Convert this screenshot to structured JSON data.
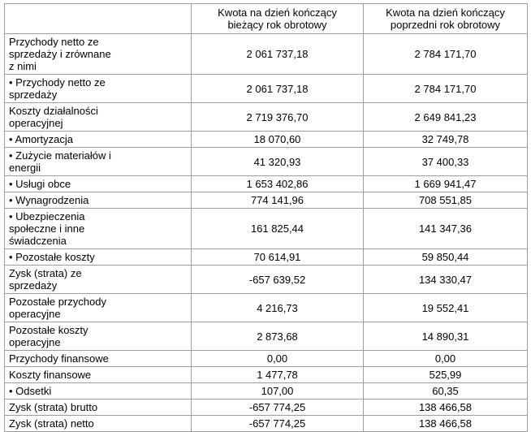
{
  "table": {
    "headers": [
      "Kwota na dzień kończący bieżący rok obrotowy",
      "Kwota na dzień kończący poprzedni rok obrotowy"
    ],
    "rows": [
      {
        "label": "Przychody netto ze sprzedaży i zrównane z nimi",
        "current": "2 061 737,18",
        "previous": "2 784 171,70"
      },
      {
        "label": "• Przychody netto ze sprzedaży",
        "current": "2 061 737,18",
        "previous": "2 784 171,70"
      },
      {
        "label": "Koszty działalności operacyjnej",
        "current": "2 719 376,70",
        "previous": "2 649 841,23"
      },
      {
        "label": "• Amortyzacja",
        "current": "18 070,60",
        "previous": "32 749,78"
      },
      {
        "label": "• Zużycie materiałów i energii",
        "current": "41 320,93",
        "previous": "37 400,33"
      },
      {
        "label": "• Usługi obce",
        "current": "1 653 402,86",
        "previous": "1 669 941,47"
      },
      {
        "label": "• Wynagrodzenia",
        "current": "774 141,96",
        "previous": "708 551,85"
      },
      {
        "label": "• Ubezpieczenia społeczne i inne świadczenia",
        "current": "161 825,44",
        "previous": "141 347,36"
      },
      {
        "label": "• Pozostałe koszty",
        "current": "70 614,91",
        "previous": "59 850,44"
      },
      {
        "label": "Zysk (strata) ze sprzedaży",
        "current": "-657 639,52",
        "previous": "134 330,47"
      },
      {
        "label": "Pozostałe przychody operacyjne",
        "current": "4 216,73",
        "previous": "19 552,41"
      },
      {
        "label": "Pozostałe koszty operacyjne",
        "current": "2 873,68",
        "previous": "14 890,31"
      },
      {
        "label": "Przychody finansowe",
        "current": "0,00",
        "previous": "0,00"
      },
      {
        "label": "Koszty finansowe",
        "current": "1 477,78",
        "previous": "525,99"
      },
      {
        "label": "• Odsetki",
        "current": "107,00",
        "previous": "60,35"
      },
      {
        "label": "Zysk (strata) brutto",
        "current": "-657 774,25",
        "previous": "138 466,58"
      },
      {
        "label": "Zysk (strata) netto",
        "current": "-657 774,25",
        "previous": "138 466,58"
      }
    ],
    "colors": {
      "border": "#9e9e9e",
      "text": "#000000",
      "background": "#ffffff"
    }
  }
}
